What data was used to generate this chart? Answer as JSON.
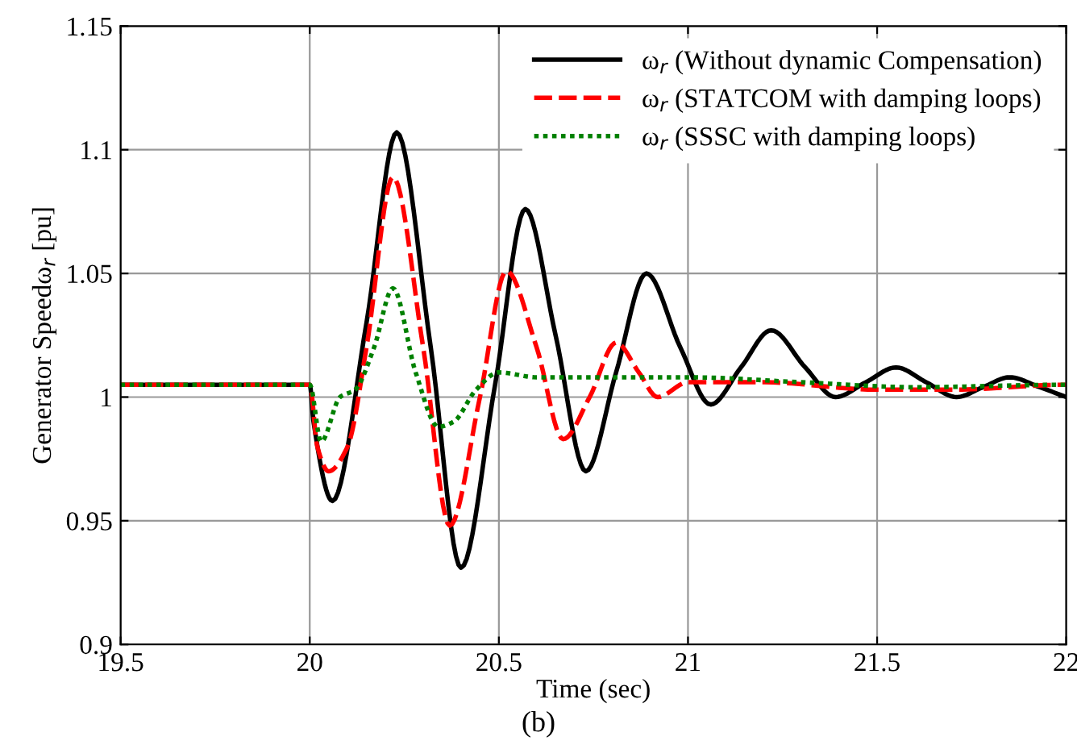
{
  "chart_data": {
    "type": "line",
    "xlabel": "Time (sec)",
    "ylabel": "Generator Speedω$_{r}$ [pu]",
    "xlim": [
      19.5,
      22
    ],
    "ylim": [
      0.9,
      1.15
    ],
    "xticks": [
      19.5,
      20,
      20.5,
      21,
      21.5,
      22
    ],
    "yticks": [
      0.9,
      0.95,
      1,
      1.05,
      1.1,
      1.15
    ],
    "grid": true,
    "legend": "top right",
    "marker": "none",
    "annotations": [
      "(b)"
    ],
    "series": [
      {
        "name": "ω$_{r}$ (Without dynamic Compensation)",
        "color": "#000000",
        "line_style": "solid",
        "x": [
          19.5,
          20.0,
          20.01,
          20.06,
          20.15,
          20.23,
          20.32,
          20.4,
          20.49,
          20.57,
          20.65,
          20.73,
          20.81,
          20.89,
          20.98,
          21.06,
          21.14,
          21.22,
          21.31,
          21.39,
          21.47,
          21.55,
          21.63,
          21.71,
          21.78,
          21.85,
          21.93,
          22.0
        ],
        "values": [
          1.005,
          1.005,
          0.99,
          0.958,
          1.03,
          1.107,
          1.02,
          0.931,
          1.005,
          1.076,
          1.025,
          0.97,
          1.01,
          1.05,
          1.02,
          0.997,
          1.012,
          1.027,
          1.012,
          1.0,
          1.006,
          1.012,
          1.006,
          1.0,
          1.004,
          1.008,
          1.004,
          1.0
        ]
      },
      {
        "name": "ω$_{r}$ (STATCOM with damping loops)",
        "color": "#ff0000",
        "line_style": "dashed",
        "x": [
          19.5,
          20.0,
          20.02,
          20.05,
          20.1,
          20.15,
          20.22,
          20.3,
          20.37,
          20.45,
          20.52,
          20.6,
          20.67,
          20.74,
          20.81,
          20.87,
          20.92,
          21.0,
          21.2,
          21.5,
          21.7,
          22.0
        ],
        "values": [
          1.005,
          1.005,
          0.98,
          0.97,
          0.98,
          1.02,
          1.089,
          1.02,
          0.948,
          1.0,
          1.051,
          1.02,
          0.983,
          1.0,
          1.022,
          1.01,
          1.0,
          1.006,
          1.006,
          1.003,
          1.003,
          1.005
        ]
      },
      {
        "name": "ω$_{r}$ (SSSC with damping loops)",
        "color": "#008000",
        "line_style": "dotted",
        "x": [
          19.5,
          20.0,
          20.03,
          20.08,
          20.12,
          20.17,
          20.22,
          20.28,
          20.34,
          20.38,
          20.44,
          20.5,
          20.6,
          21.0,
          21.3,
          21.6,
          22.0
        ],
        "values": [
          1.005,
          1.005,
          0.982,
          1.0,
          1.003,
          1.02,
          1.044,
          1.01,
          0.988,
          0.99,
          1.003,
          1.01,
          1.008,
          1.008,
          1.006,
          1.004,
          1.005
        ]
      }
    ]
  }
}
